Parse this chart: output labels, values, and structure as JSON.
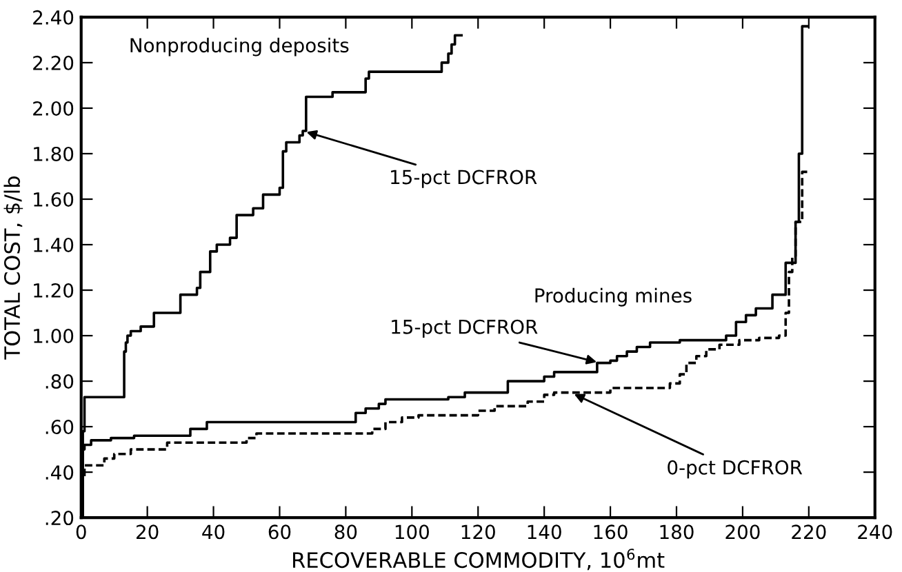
{
  "chart_data": {
    "type": "step",
    "xlabel": "RECOVERABLE COMMODITY, 10$^{6}$mt",
    "ylabel": "TOTAL COST, $/lb",
    "xlim": [
      0,
      240
    ],
    "ylim": [
      0.2,
      2.4
    ],
    "xticks": [
      0,
      20,
      40,
      60,
      80,
      100,
      120,
      140,
      160,
      180,
      200,
      220,
      240
    ],
    "yticks": [
      {
        "value": 0.2,
        "label": ".20"
      },
      {
        "value": 0.4,
        "label": ".40"
      },
      {
        "value": 0.6,
        "label": ".60"
      },
      {
        "value": 0.8,
        "label": ".80"
      },
      {
        "value": 1.0,
        "label": "1.00"
      },
      {
        "value": 1.2,
        "label": "1.20"
      },
      {
        "value": 1.4,
        "label": "1.40"
      },
      {
        "value": 1.6,
        "label": "1.60"
      },
      {
        "value": 1.8,
        "label": "1.80"
      },
      {
        "value": 2.0,
        "label": "2.00"
      },
      {
        "value": 2.2,
        "label": "2.20"
      },
      {
        "value": 2.4,
        "label": "2.40"
      }
    ],
    "grid": false,
    "marker": "none",
    "series": [
      {
        "color": "#000000",
        "line_style": "solid",
        "x": [
          0,
          0.5,
          1,
          13,
          13.5,
          14,
          15,
          18,
          22,
          30,
          35,
          36,
          39,
          41,
          45,
          47,
          52,
          55,
          60,
          61,
          62,
          66,
          67,
          68,
          76,
          86,
          87,
          109,
          111,
          112,
          113,
          115
        ],
        "values": [
          0.2,
          0.58,
          0.73,
          0.93,
          0.97,
          1.0,
          1.02,
          1.04,
          1.1,
          1.18,
          1.21,
          1.28,
          1.37,
          1.4,
          1.43,
          1.53,
          1.56,
          1.62,
          1.65,
          1.81,
          1.85,
          1.88,
          1.9,
          2.05,
          2.07,
          2.13,
          2.16,
          2.2,
          2.24,
          2.28,
          2.32,
          2.32
        ]
      },
      {
        "color": "#000000",
        "line_style": "solid",
        "x": [
          0,
          0.5,
          1,
          3,
          9,
          16,
          33,
          38,
          83,
          86,
          90,
          92,
          111,
          116,
          129,
          140,
          143,
          156,
          160,
          162,
          165,
          168,
          172,
          181,
          195,
          198,
          201,
          204,
          209,
          213,
          216,
          217,
          218,
          219.5
        ],
        "values": [
          0.2,
          0.5,
          0.52,
          0.54,
          0.55,
          0.56,
          0.59,
          0.62,
          0.66,
          0.68,
          0.7,
          0.72,
          0.73,
          0.75,
          0.8,
          0.82,
          0.84,
          0.88,
          0.89,
          0.91,
          0.93,
          0.95,
          0.97,
          0.98,
          1.0,
          1.06,
          1.09,
          1.12,
          1.18,
          1.32,
          1.5,
          1.8,
          2.36,
          2.36
        ]
      },
      {
        "color": "#000000",
        "line_style": "dashed",
        "x": [
          0,
          0.5,
          1,
          7,
          10,
          15,
          26,
          50,
          53,
          88,
          92,
          97,
          102,
          120,
          125,
          135,
          140,
          143,
          160,
          178,
          181,
          183,
          186,
          189,
          193,
          199,
          205,
          211,
          213,
          214,
          215,
          216,
          218,
          220
        ],
        "values": [
          0.2,
          0.38,
          0.43,
          0.46,
          0.48,
          0.5,
          0.53,
          0.55,
          0.57,
          0.59,
          0.62,
          0.64,
          0.65,
          0.67,
          0.69,
          0.71,
          0.74,
          0.75,
          0.77,
          0.79,
          0.83,
          0.88,
          0.91,
          0.94,
          0.96,
          0.98,
          0.99,
          1.0,
          1.1,
          1.28,
          1.35,
          1.5,
          1.72,
          1.72
        ]
      }
    ],
    "annotations": [
      "Nonproducing deposits",
      "Producing mines",
      {
        "text": "15-pct DCFROR",
        "x": 67,
        "y": 1.9
      },
      {
        "text": "15-pct DCFROR",
        "x": 157,
        "y": 0.88
      },
      {
        "text": "0-pct DCFROR",
        "x": 148,
        "y": 0.75
      }
    ]
  }
}
